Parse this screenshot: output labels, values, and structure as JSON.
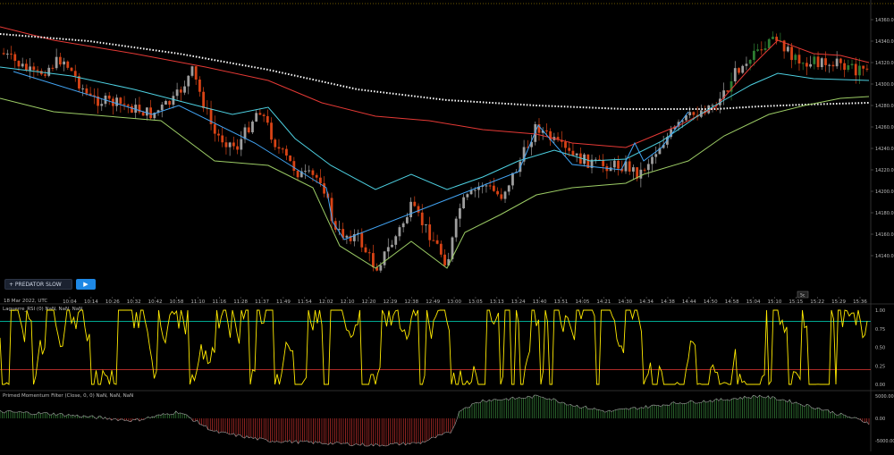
{
  "buttons": {
    "predator_label": "+ PREDATOR SLOW",
    "play_icon": "▶"
  },
  "axis": {
    "date_label": "18 Mar 2022, UTC",
    "time_ticks": [
      "10:04",
      "10:14",
      "10:26",
      "10:32",
      "10:42",
      "10:58",
      "11:10",
      "11:16",
      "11:28",
      "11:37",
      "11:49",
      "11:54",
      "12:02",
      "12:10",
      "12:20",
      "12:29",
      "12:38",
      "12:49",
      "13:00",
      "13:05",
      "13:13",
      "13:24",
      "13:40",
      "13:51",
      "14:05",
      "14:21",
      "14:30",
      "14:34",
      "14:38",
      "14:44",
      "14:50",
      "14:58",
      "15:04",
      "15:10",
      "15:15",
      "15:22",
      "15:29",
      "15:36"
    ],
    "zoom_badge": "5c"
  },
  "price_axis": {
    "labels": [
      "14360.00",
      "14340.00",
      "14320.00",
      "14300.00",
      "14280.00",
      "14260.00",
      "14240.00",
      "14220.00",
      "14200.00",
      "14180.00",
      "14160.00",
      "14140.00"
    ]
  },
  "rsi_panel": {
    "title": "Laguerre_RSI (0) NaN, NaN, NaN",
    "labels": [
      "1.00",
      "0.75",
      "0.50",
      "0.25",
      "0.00"
    ],
    "line_color": "#ffea00",
    "upper_color": "#00bfa5",
    "lower_color": "#e53935"
  },
  "momentum_panel": {
    "title": "Primed Momentum Filter (Close, 0, 0) NaN, NaN, NaN",
    "labels": [
      "5000.00",
      "0.00",
      "-5000.00"
    ],
    "pos_color": "#43a047",
    "neg_color": "#e53935"
  },
  "colors": {
    "upper_band": "#e53935",
    "slow_ma": "#ffffff",
    "mid_band": "#4dd0e1",
    "lower_band": "#9ccc65",
    "zigzag": "#42a5f5",
    "candle_up": "#9e9e9e",
    "candle_down": "#d84315",
    "candle_green": "#2e7d32"
  }
}
